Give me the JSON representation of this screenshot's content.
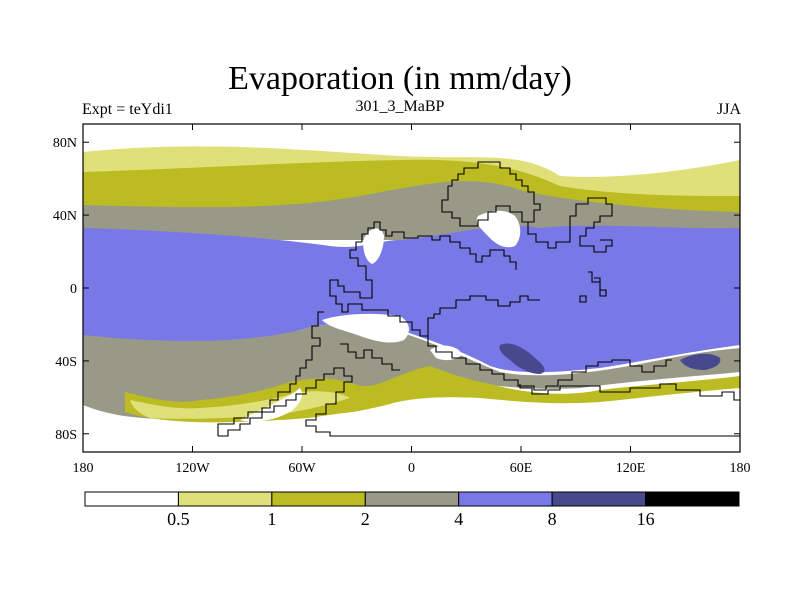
{
  "chart_data": {
    "type": "filled-contour-map",
    "title": "Evaporation (in mm/day)",
    "left_subtitle": "Expt = teYdi1",
    "center_subtitle": "301_3_MaBP",
    "right_subtitle": "JJA",
    "xlim": [
      -180,
      180
    ],
    "ylim": [
      -90,
      90
    ],
    "x_ticks": [
      {
        "value": -180,
        "label": "180"
      },
      {
        "value": -120,
        "label": "120W"
      },
      {
        "value": -60,
        "label": "60W"
      },
      {
        "value": 0,
        "label": "0"
      },
      {
        "value": 60,
        "label": "60E"
      },
      {
        "value": 120,
        "label": "120E"
      },
      {
        "value": 180,
        "label": "180"
      }
    ],
    "y_ticks": [
      {
        "value": 80,
        "label": "80N"
      },
      {
        "value": 40,
        "label": "40N"
      },
      {
        "value": 0,
        "label": "0"
      },
      {
        "value": -40,
        "label": "40S"
      },
      {
        "value": -80,
        "label": "80S"
      }
    ],
    "colorbar": {
      "levels": [
        "0.5",
        "1",
        "2",
        "4",
        "8",
        "16"
      ],
      "colors": [
        "#ffffff",
        "#e0e07a",
        "#bcbc22",
        "#999988",
        "#7878e6",
        "#48488e",
        "#000000"
      ]
    },
    "bands": [
      {
        "level_index": 1,
        "lat_range": [
          70,
          90
        ]
      },
      {
        "level_index": 2,
        "lat_range": [
          55,
          70
        ]
      },
      {
        "level_index": 3,
        "lat_range": [
          30,
          50
        ]
      },
      {
        "level_index": 4,
        "lat_range": [
          -40,
          30
        ]
      },
      {
        "level_index": 3,
        "lat_range": [
          -70,
          -40
        ]
      },
      {
        "level_index": 0,
        "lat_range": [
          -90,
          -70
        ]
      }
    ]
  }
}
